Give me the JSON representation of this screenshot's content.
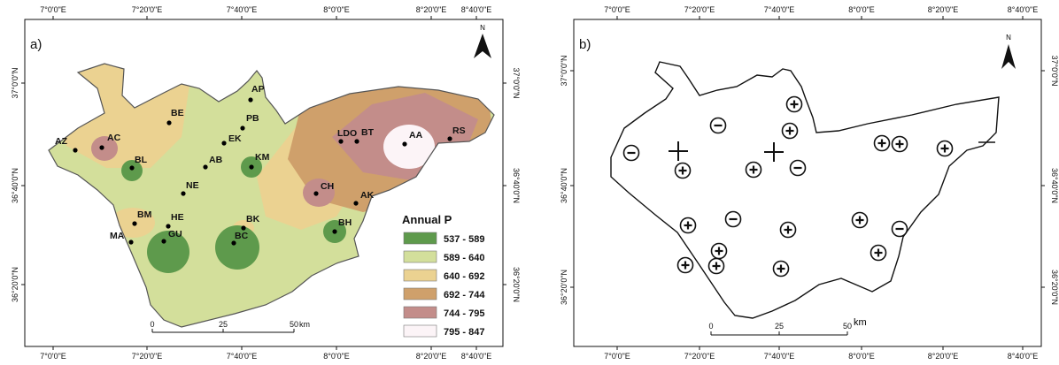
{
  "panel_a": {
    "label": "a)",
    "north": "N",
    "top_axis": [
      "7°0'0\"E",
      "7°20'0\"E",
      "7°40'0\"E",
      "8°0'0\"E",
      "8°20'0\"E",
      "8°40'0\"E"
    ],
    "bottom_axis": [
      "7°0'0\"E",
      "7°20'0\"E",
      "7°40'0\"E",
      "8°0'0\"E",
      "8°20'0\"E",
      "8°40'0\"E"
    ],
    "left_axis": [
      "37°0'0\"N",
      "36°40'0\"N",
      "36°20'0\"N"
    ],
    "right_axis": [
      "37°0'0\"N",
      "36°40'0\"N",
      "36°20'0\"N"
    ],
    "stations": [
      "AP",
      "BE",
      "PB",
      "AC",
      "EK",
      "AZ",
      "AB",
      "KM",
      "BL",
      "NE",
      "BM",
      "BK",
      "HE",
      "MA",
      "GU",
      "BC",
      "LDO",
      "BT",
      "AA",
      "RS",
      "CH",
      "AK",
      "BH"
    ],
    "legend_title": "Annual P",
    "legend": [
      {
        "label": "537 - 589",
        "color": "#5e9a4c"
      },
      {
        "label": "589 - 640",
        "color": "#d3df9b"
      },
      {
        "label": "640 - 692",
        "color": "#ebd291"
      },
      {
        "label": "692 - 744",
        "color": "#cfa06b"
      },
      {
        "label": "744 - 795",
        "color": "#c38d8a"
      },
      {
        "label": "795 - 847",
        "color": "#fcf4f7"
      }
    ],
    "scalebar": {
      "ticks": [
        "0",
        "25",
        "50"
      ],
      "unit": "km"
    }
  },
  "panel_b": {
    "label": "b)",
    "north": "N",
    "top_axis": [
      "7°0'0\"E",
      "7°20'0\"E",
      "7°40'0\"E",
      "8°0'0\"E",
      "8°20'0\"E",
      "8°40'0\"E"
    ],
    "bottom_axis": [
      "7°0'0\"E",
      "7°20'0\"E",
      "7°40'0\"E",
      "8°0'0\"E",
      "8°20'0\"E",
      "8°40'0\"E"
    ],
    "left_axis": [
      "37°0'0\"N",
      "36°40'0\"N",
      "36°20'0\"N"
    ],
    "right_axis": [
      "37°0'0\"N",
      "36°40'0\"N",
      "36°20'0\"N"
    ],
    "scalebar": {
      "ticks": [
        "0",
        "25",
        "50"
      ],
      "unit": "km"
    }
  }
}
